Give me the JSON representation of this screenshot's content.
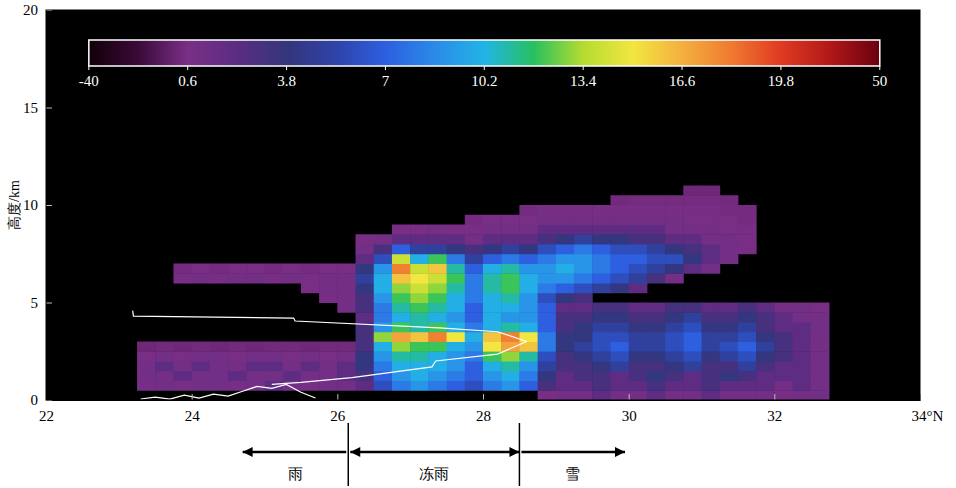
{
  "chart_data": {
    "type": "heatmap",
    "ylabel": "高度/km",
    "xlim": [
      22,
      34
    ],
    "xticks": [
      22,
      24,
      26,
      28,
      30,
      32,
      {
        "value": 34,
        "label": "34°N"
      }
    ],
    "ylim": [
      0,
      20
    ],
    "yticks": [
      0,
      5,
      10,
      15,
      20
    ],
    "x": [
      23,
      23.25,
      23.5,
      23.75,
      24,
      24.25,
      24.5,
      24.75,
      25,
      25.25,
      25.5,
      25.75,
      26,
      26.25,
      26.5,
      26.75,
      27,
      27.25,
      27.5,
      27.75,
      28,
      28.25,
      28.5,
      28.75,
      29,
      29.25,
      29.5,
      29.75,
      30,
      30.25,
      30.5,
      30.75,
      31,
      31.25,
      31.5,
      31.75,
      32,
      32.25,
      32.5,
      32.75
    ],
    "y": [
      0,
      0.5,
      1,
      1.5,
      2,
      2.5,
      3,
      3.5,
      4,
      4.5,
      5,
      5.5,
      6,
      6.5,
      7,
      7.5,
      8,
      8.5,
      9,
      9.5,
      10,
      10.5,
      11
    ],
    "cells": [
      [
        null,
        null,
        null,
        null,
        null,
        null,
        null,
        null,
        null,
        null,
        null,
        null,
        null,
        null,
        null,
        null,
        null,
        null,
        null,
        null,
        null,
        null,
        null,
        0,
        1,
        1,
        2,
        1,
        1,
        2,
        1,
        1,
        2,
        1,
        1,
        1,
        0,
        1,
        1
      ],
      [
        null,
        0,
        1,
        0,
        1,
        1,
        0,
        1,
        2,
        1,
        0,
        1,
        1,
        2,
        6,
        8,
        9,
        8,
        7,
        6,
        8,
        9,
        7,
        3,
        2,
        2,
        3,
        2,
        2,
        3,
        2,
        2,
        3,
        2,
        2,
        2,
        1,
        2,
        1
      ],
      [
        null,
        1,
        1,
        2,
        1,
        1,
        2,
        1,
        1,
        2,
        1,
        1,
        2,
        3,
        7,
        9,
        10,
        9,
        8,
        7,
        9,
        10,
        8,
        4,
        2,
        3,
        3,
        2,
        3,
        4,
        3,
        2,
        3,
        4,
        3,
        2,
        2,
        2,
        1
      ],
      [
        null,
        1,
        2,
        1,
        2,
        1,
        1,
        2,
        2,
        1,
        2,
        1,
        2,
        4,
        8,
        10,
        10,
        10,
        9,
        7,
        10,
        11,
        9,
        5,
        3,
        3,
        4,
        5,
        3,
        3,
        4,
        5,
        3,
        3,
        5,
        3,
        2,
        2,
        1
      ],
      [
        null,
        0,
        1,
        0,
        1,
        1,
        0,
        1,
        1,
        0,
        1,
        0,
        1,
        4,
        9,
        11,
        11,
        10,
        9,
        8,
        12,
        13,
        11,
        6,
        3,
        4,
        5,
        6,
        4,
        4,
        5,
        6,
        4,
        5,
        6,
        4,
        3,
        2,
        1
      ],
      [
        null,
        -3,
        -2,
        -3,
        -2,
        -3,
        -2,
        -3,
        -2,
        -2,
        -3,
        -2,
        -2,
        3,
        10,
        13,
        12,
        12,
        10,
        9,
        15,
        17,
        16,
        8,
        4,
        5,
        6,
        7,
        5,
        5,
        6,
        7,
        5,
        6,
        7,
        5,
        3,
        2,
        1
      ],
      [
        null,
        null,
        null,
        null,
        null,
        null,
        null,
        null,
        null,
        null,
        null,
        null,
        null,
        3,
        13,
        17,
        16,
        18,
        15,
        10,
        16,
        18,
        15,
        8,
        4,
        4,
        6,
        6,
        5,
        5,
        6,
        7,
        5,
        5,
        6,
        4,
        3,
        2,
        1
      ],
      [
        null,
        null,
        null,
        null,
        null,
        null,
        null,
        null,
        null,
        null,
        null,
        null,
        null,
        3,
        9,
        12,
        11,
        12,
        10,
        8,
        10,
        11,
        10,
        7,
        3,
        4,
        5,
        5,
        4,
        4,
        5,
        6,
        4,
        4,
        5,
        3,
        2,
        2,
        1
      ],
      [
        null,
        null,
        null,
        null,
        null,
        null,
        null,
        null,
        null,
        null,
        null,
        null,
        null,
        2,
        8,
        10,
        11,
        10,
        9,
        7,
        10,
        9,
        9,
        7,
        3,
        3,
        4,
        4,
        3,
        3,
        4,
        5,
        3,
        3,
        4,
        3,
        2,
        1,
        1
      ],
      [
        null,
        null,
        null,
        null,
        null,
        null,
        null,
        null,
        null,
        null,
        null,
        null,
        1,
        3,
        8,
        11,
        12,
        11,
        10,
        7,
        10,
        10,
        9,
        7,
        2,
        2,
        3,
        3,
        2,
        2,
        3,
        3,
        2,
        2,
        3,
        2,
        1,
        1,
        0
      ],
      [
        null,
        null,
        null,
        null,
        null,
        null,
        null,
        null,
        null,
        null,
        null,
        0,
        1,
        3,
        9,
        12,
        13,
        12,
        10,
        8,
        10,
        11,
        9,
        6,
        4,
        3,
        null,
        null,
        null,
        null,
        null,
        null,
        null,
        null,
        null,
        null,
        null,
        null,
        null
      ],
      [
        null,
        null,
        null,
        null,
        null,
        null,
        null,
        null,
        null,
        null,
        0,
        1,
        1,
        4,
        10,
        13,
        14,
        13,
        11,
        8,
        11,
        12,
        10,
        8,
        7,
        6,
        5,
        4,
        2,
        null,
        null,
        null,
        null,
        null,
        null,
        null,
        null,
        null,
        null
      ],
      [
        null,
        null,
        null,
        0,
        1,
        0,
        1,
        1,
        0,
        1,
        0,
        1,
        1,
        5,
        10,
        16,
        15,
        14,
        12,
        8,
        11,
        12,
        10,
        9,
        9,
        8,
        7,
        6,
        5,
        3,
        1,
        null,
        null,
        null,
        null,
        null,
        null,
        null,
        null
      ],
      [
        null,
        null,
        null,
        -1,
        0,
        -1,
        0,
        0,
        -1,
        0,
        -1,
        0,
        0,
        4,
        9,
        18,
        14,
        16,
        11,
        7,
        10,
        11,
        9,
        9,
        10,
        9,
        8,
        7,
        6,
        5,
        4,
        2,
        1,
        null,
        null,
        null,
        null,
        null,
        null
      ],
      [
        null,
        null,
        null,
        null,
        null,
        null,
        null,
        null,
        null,
        null,
        null,
        null,
        null,
        2,
        6,
        14,
        10,
        12,
        8,
        5,
        7,
        8,
        7,
        8,
        9,
        9,
        8,
        7,
        7,
        6,
        6,
        4,
        2,
        1,
        null,
        null,
        null,
        null,
        null
      ],
      [
        null,
        null,
        null,
        null,
        null,
        null,
        null,
        null,
        null,
        null,
        null,
        null,
        null,
        1,
        3,
        7,
        5,
        5,
        4,
        3,
        4,
        5,
        4,
        6,
        7,
        8,
        7,
        6,
        6,
        5,
        4,
        3,
        2,
        1,
        0,
        null,
        null,
        null,
        null
      ],
      [
        null,
        null,
        null,
        null,
        null,
        null,
        null,
        null,
        null,
        null,
        null,
        null,
        null,
        0,
        1,
        2,
        2,
        2,
        2,
        1,
        2,
        2,
        2,
        3,
        4,
        5,
        4,
        4,
        3,
        3,
        2,
        2,
        1,
        1,
        0,
        null,
        null,
        null,
        null
      ],
      [
        null,
        null,
        null,
        null,
        null,
        null,
        null,
        null,
        null,
        null,
        null,
        null,
        null,
        null,
        null,
        0,
        0,
        1,
        0,
        0,
        1,
        1,
        1,
        2,
        2,
        2,
        2,
        2,
        2,
        2,
        1,
        1,
        1,
        0,
        0,
        null,
        null,
        null,
        null
      ],
      [
        null,
        null,
        null,
        null,
        null,
        null,
        null,
        null,
        null,
        null,
        null,
        null,
        null,
        null,
        null,
        null,
        null,
        null,
        null,
        -1,
        0,
        0,
        0,
        1,
        1,
        1,
        1,
        1,
        1,
        1,
        1,
        0,
        0,
        0,
        -1,
        null,
        null,
        null,
        null
      ],
      [
        null,
        null,
        null,
        null,
        null,
        null,
        null,
        null,
        null,
        null,
        null,
        null,
        null,
        null,
        null,
        null,
        null,
        null,
        null,
        null,
        null,
        null,
        -1,
        0,
        0,
        0,
        0,
        0,
        0,
        0,
        0,
        0,
        0,
        -1,
        -1,
        null,
        null,
        null,
        null
      ],
      [
        null,
        null,
        null,
        null,
        null,
        null,
        null,
        null,
        null,
        null,
        null,
        null,
        null,
        null,
        null,
        null,
        null,
        null,
        null,
        null,
        null,
        null,
        null,
        null,
        null,
        null,
        null,
        -2,
        -1,
        -1,
        -1,
        -1,
        -1,
        -2,
        null,
        null,
        null,
        null,
        null
      ],
      [
        null,
        null,
        null,
        null,
        null,
        null,
        null,
        null,
        null,
        null,
        null,
        null,
        null,
        null,
        null,
        null,
        null,
        null,
        null,
        null,
        null,
        null,
        null,
        null,
        null,
        null,
        null,
        null,
        null,
        null,
        null,
        -3,
        -3,
        null,
        null,
        null,
        null,
        null,
        null
      ]
    ],
    "colorbar": {
      "range": [
        -40,
        50
      ],
      "ticks": [
        -40,
        0.6,
        3.8,
        7,
        10.2,
        13.4,
        16.6,
        19.8,
        50
      ]
    },
    "series": [
      {
        "type": "line",
        "color": "#ffffff",
        "x": [
          23.19,
          23.2,
          25.4,
          25.42,
          27.4,
          28.2,
          28.6
        ],
        "values": [
          4.58,
          4.3,
          4.2,
          4.05,
          3.7,
          3.5,
          3.0
        ]
      },
      {
        "type": "line",
        "color": "#ffffff",
        "x": [
          25.1,
          25.5,
          26.2,
          27.3,
          27.35,
          28.2,
          28.6
        ],
        "values": [
          0.8,
          0.9,
          1.15,
          1.7,
          2.0,
          2.35,
          3.0
        ]
      },
      {
        "type": "line",
        "color": "#ffffff",
        "x": [
          23.3,
          23.5,
          23.7,
          23.9,
          24.1,
          24.3,
          24.5,
          24.7,
          24.9,
          25.1,
          25.3,
          25.5,
          25.7
        ],
        "values": [
          0.05,
          0.15,
          0.05,
          0.25,
          0.1,
          0.3,
          0.2,
          0.45,
          0.7,
          0.6,
          0.8,
          0.4,
          0.1
        ]
      }
    ],
    "dividers": [
      26.15,
      28.5
    ],
    "annotations": [
      {
        "text": "雨",
        "x": [
          26.15,
          24.7
        ]
      },
      {
        "text": "冻雨",
        "x": [
          26.15,
          28.5
        ]
      },
      {
        "text": "雪",
        "x": [
          28.5,
          29.95
        ]
      }
    ]
  }
}
